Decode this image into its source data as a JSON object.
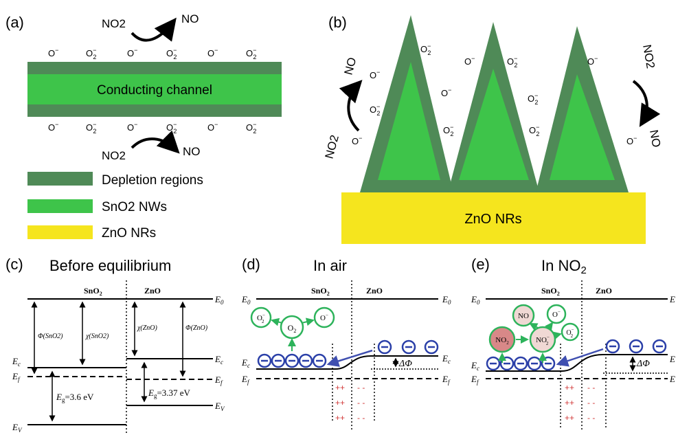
{
  "panel_a": {
    "label": "(a)",
    "channel_label": "Conducting channel",
    "top_gas_in": "NO2",
    "top_gas_out": "NO",
    "bottom_gas_in": "NO2",
    "bottom_gas_out": "NO",
    "ion_o": "O",
    "ion_o2": "O",
    "sub2": "2",
    "minus": "−"
  },
  "legend": {
    "depletion": "Depletion regions",
    "sno2": "SnO2 NWs",
    "zno": "ZnO NRs"
  },
  "panel_b": {
    "label": "(b)",
    "substrate_label": "ZnO NRs",
    "left_in": "NO2",
    "left_out": "NO",
    "right_in": "NO2",
    "right_out": "NO"
  },
  "panel_c": {
    "label": "(c)",
    "title": "Before equilibrium",
    "sno2": "SnO",
    "zno": "ZnO",
    "e0": "E",
    "sub0": "0",
    "ec": "E",
    "subc": "c",
    "ef": "E",
    "subf": "f",
    "ev": "E",
    "subv": "V",
    "phi_sno2": "Φ(SnO2)",
    "chi_sno2": "χ(SnO2)",
    "chi_zno": "χ(ZnO)",
    "phi_zno": "Φ(ZnO)",
    "eg_sno2": "=3.6 eV",
    "eg_zno": "=3.37 eV",
    "eg": "E",
    "subg": "g"
  },
  "panel_d": {
    "label": "(d)",
    "title": "In air",
    "sno2": "SnO",
    "zno": "ZnO",
    "o2_center": "O",
    "o_minus": "O",
    "o2_minus": "O",
    "delta_phi": "ΔΦ",
    "plus": "++",
    "minus_pair": "- -"
  },
  "panel_e": {
    "label": "(e)",
    "title": "In NO2",
    "sno2": "SnO",
    "zno": "ZnO",
    "no": "NO",
    "no2": "NO",
    "no2_minus": "NO",
    "o_minus": "O",
    "o2_minus": "O",
    "delta_phi": "ΔΦ",
    "plus": "++",
    "minus_pair": "- -"
  },
  "colors": {
    "depletion": "#4f8a57",
    "channel": "#3ec44a",
    "zno": "#f5e51e",
    "circle": "#2db35b",
    "electron": "#2a3fa8",
    "arrow_blue": "#3f4fb0",
    "plus": "#d23a3a",
    "no2_fill": "#d88888",
    "no_fill": "#f0d8d4"
  }
}
